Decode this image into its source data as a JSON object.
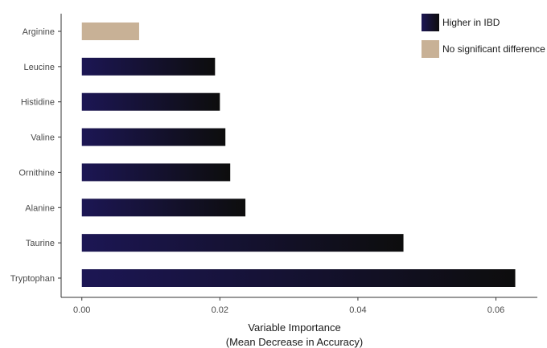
{
  "chart_data": {
    "type": "bar",
    "orientation": "horizontal",
    "categories": [
      "Tryptophan",
      "Taurine",
      "Alanine",
      "Ornithine",
      "Valine",
      "Histidine",
      "Leucine",
      "Arginine"
    ],
    "values": [
      0.0628,
      0.0466,
      0.0237,
      0.0215,
      0.0208,
      0.02,
      0.0193,
      0.0083
    ],
    "groups": [
      "Higher in IBD",
      "Higher in IBD",
      "Higher in IBD",
      "Higher in IBD",
      "Higher in IBD",
      "Higher in IBD",
      "Higher in IBD",
      "No significant difference"
    ],
    "xlabel_line1": "Variable Importance",
    "xlabel_line2": "(Mean Decrease in Accuracy)",
    "ylabel": "",
    "xlim": [
      -0.003,
      0.066
    ],
    "x_ticks": [
      0.0,
      0.02,
      0.04,
      0.06
    ],
    "x_tick_labels": [
      "0.00",
      "0.02",
      "0.04",
      "0.06"
    ],
    "grid": false,
    "legend_position": "top-right",
    "legend": [
      {
        "label": "Higher in IBD",
        "color_start": "#1c1654",
        "color_end": "#0d0d0d"
      },
      {
        "label": "No significant difference",
        "color": "#c8b196"
      }
    ]
  }
}
